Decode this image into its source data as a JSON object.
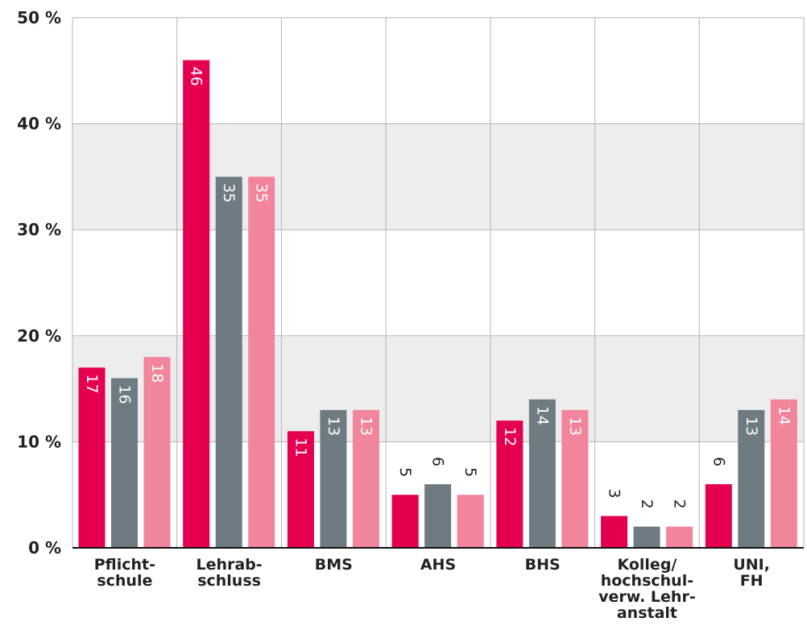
{
  "chart_data": {
    "type": "bar",
    "title": "",
    "xlabel": "",
    "ylabel": "",
    "ylim": [
      0,
      50
    ],
    "yticks": [
      "0 %",
      "10 %",
      "20 %",
      "30 %",
      "40 %",
      "50 %"
    ],
    "ytick_values": [
      0,
      10,
      20,
      30,
      40,
      50
    ],
    "grid": true,
    "legend": "none",
    "categories": [
      [
        "Pflicht-",
        "schule"
      ],
      [
        "Lehrab-",
        "schluss"
      ],
      [
        "BMS"
      ],
      [
        "AHS"
      ],
      [
        "BHS"
      ],
      [
        "Kolleg/",
        "hochschul-",
        "verw. Lehr-",
        "anstalt"
      ],
      [
        "UNI,",
        "FH"
      ]
    ],
    "series": [
      {
        "color": "#e4004f",
        "values": [
          17,
          46,
          11,
          5,
          12,
          3,
          6
        ]
      },
      {
        "color": "#6f7b82",
        "values": [
          16,
          35,
          13,
          6,
          14,
          2,
          13
        ]
      },
      {
        "color": "#f0859c",
        "values": [
          18,
          35,
          13,
          5,
          13,
          2,
          14
        ]
      }
    ],
    "data_labels": [
      [
        "17",
        "46",
        "11",
        "5",
        "12",
        "3",
        "6"
      ],
      [
        "16",
        "35",
        "13",
        "6",
        "14",
        "2",
        "13"
      ],
      [
        "18",
        "35",
        "13",
        "5",
        "13",
        "2",
        "14"
      ]
    ],
    "band_color": "#ededed",
    "grid_color": "#b5b5b5"
  }
}
